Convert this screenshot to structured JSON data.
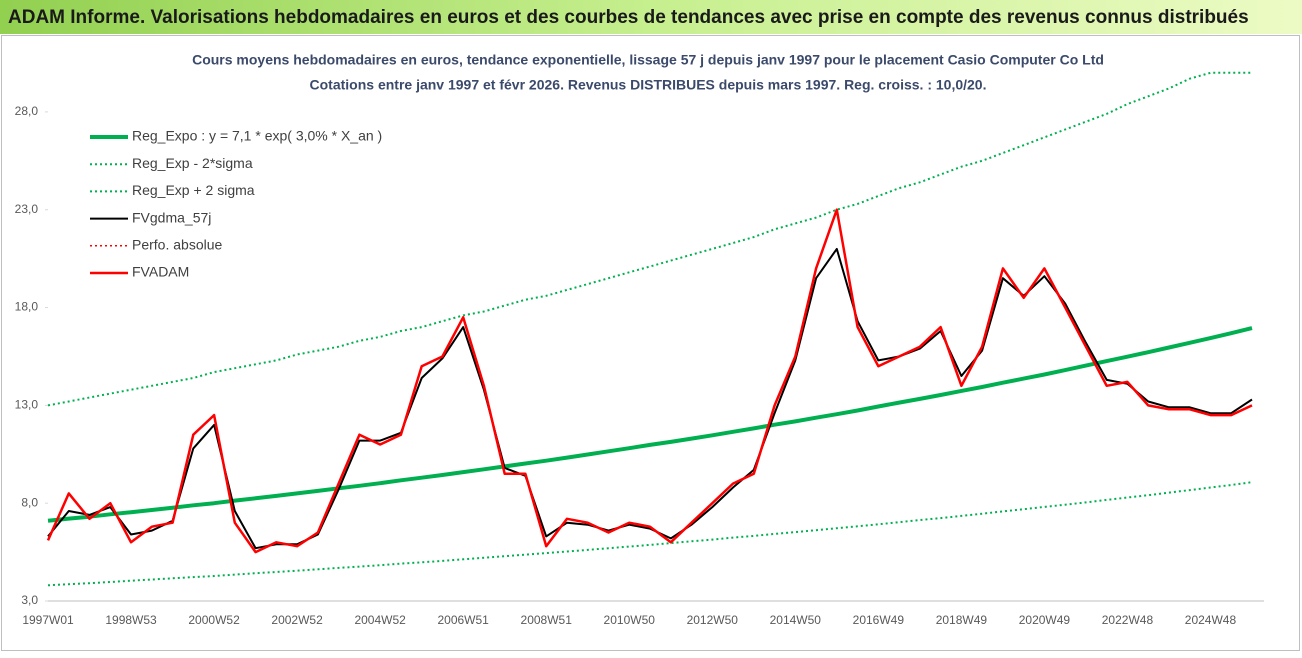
{
  "chart_data": {
    "type": "line",
    "title": "ADAM Informe. Valorisations hebdomadaires en euros et des courbes de tendances avec prise en compte des revenus connus distribués",
    "subtitle": [
      "Cours moyens hebdomadaires en euros, tendance exponentielle, lissage 57 j depuis janv 1997 pour le placement Casio Computer Co Ltd",
      "Cotations entre janv 1997 et févr 2026. Revenus DISTRIBUES depuis mars 1997. Reg. croiss. : 10,0/20."
    ],
    "categories": [
      "1997W01",
      null,
      null,
      null,
      "1998W53",
      null,
      null,
      null,
      "2000W52",
      null,
      null,
      null,
      "2002W52",
      null,
      null,
      null,
      "2004W52",
      null,
      null,
      null,
      "2006W51",
      null,
      null,
      null,
      "2008W51",
      null,
      null,
      null,
      "2010W50",
      null,
      null,
      null,
      "2012W50",
      null,
      null,
      null,
      "2014W50",
      null,
      null,
      null,
      "2016W49",
      null,
      null,
      null,
      "2018W49",
      null,
      null,
      null,
      "2020W49",
      null,
      null,
      null,
      "2022W48",
      null,
      null,
      null,
      "2024W48",
      null,
      null
    ],
    "ylim": [
      3,
      30.5
    ],
    "yticks": [
      {
        "value": 3,
        "label": "3,0"
      },
      {
        "value": 8,
        "label": "8,0"
      },
      {
        "value": 13,
        "label": "13,0"
      },
      {
        "value": 18,
        "label": "18,0"
      },
      {
        "value": 23,
        "label": "23,0"
      },
      {
        "value": 28,
        "label": "28,0"
      }
    ],
    "grid": false,
    "legend": "top-left",
    "series": [
      {
        "name": "Reg_Expo : y = 7,1 * exp( 3,0% *  X_an )",
        "color": "#00b050",
        "style": "solid",
        "width": 4,
        "values": [
          7.1,
          7.21,
          7.31,
          7.43,
          7.54,
          7.65,
          7.77,
          7.89,
          8.0,
          8.13,
          8.25,
          8.37,
          8.5,
          8.63,
          8.76,
          8.89,
          9.02,
          9.17,
          9.3,
          9.44,
          9.59,
          9.73,
          9.88,
          10.03,
          10.17,
          10.33,
          10.49,
          10.65,
          10.81,
          10.98,
          11.13,
          11.3,
          11.47,
          11.65,
          11.82,
          12.01,
          12.18,
          12.37,
          12.55,
          12.74,
          12.94,
          13.14,
          13.33,
          13.53,
          13.74,
          13.94,
          14.16,
          14.37,
          14.58,
          14.8,
          15.03,
          15.26,
          15.49,
          15.72,
          15.96,
          16.2,
          16.44,
          16.69,
          16.95
        ]
      },
      {
        "name": "Reg_Exp - 2*sigma",
        "color": "#00b050",
        "style": "dotted",
        "width": 2,
        "values": [
          3.8,
          3.86,
          3.91,
          3.97,
          4.04,
          4.1,
          4.16,
          4.22,
          4.28,
          4.35,
          4.42,
          4.48,
          4.55,
          4.62,
          4.69,
          4.76,
          4.83,
          4.91,
          4.98,
          5.05,
          5.13,
          5.21,
          5.29,
          5.37,
          5.45,
          5.53,
          5.61,
          5.7,
          5.78,
          5.87,
          5.96,
          6.05,
          6.14,
          6.24,
          6.33,
          6.43,
          6.52,
          6.62,
          6.72,
          6.82,
          6.92,
          7.03,
          7.14,
          7.24,
          7.35,
          7.46,
          7.58,
          7.69,
          7.81,
          7.92,
          8.04,
          8.17,
          8.29,
          8.41,
          8.54,
          8.67,
          8.8,
          8.93,
          9.07
        ]
      },
      {
        "name": "Reg_Exp + 2 sigma",
        "color": "#00b050",
        "style": "dotted",
        "width": 2,
        "values": [
          13.0,
          13.2,
          13.4,
          13.6,
          13.8,
          14.0,
          14.2,
          14.4,
          14.7,
          14.9,
          15.1,
          15.3,
          15.6,
          15.8,
          16.0,
          16.3,
          16.5,
          16.8,
          17.0,
          17.3,
          17.6,
          17.8,
          18.1,
          18.4,
          18.6,
          18.9,
          19.2,
          19.5,
          19.8,
          20.1,
          20.4,
          20.7,
          21.0,
          21.3,
          21.6,
          22.0,
          22.3,
          22.6,
          23.0,
          23.3,
          23.7,
          24.1,
          24.4,
          24.8,
          25.2,
          25.5,
          25.9,
          26.3,
          26.7,
          27.1,
          27.5,
          27.9,
          28.4,
          28.8,
          29.2,
          29.7,
          30.0,
          30.0,
          30.0
        ]
      },
      {
        "name": "FVgdma_57j",
        "color": "#000000",
        "style": "solid",
        "width": 2,
        "values": [
          6.3,
          7.6,
          7.4,
          7.8,
          6.4,
          6.6,
          7.1,
          10.8,
          12.0,
          7.6,
          5.7,
          5.9,
          5.9,
          6.4,
          8.7,
          11.2,
          11.2,
          11.6,
          14.4,
          15.4,
          17.0,
          13.8,
          9.8,
          9.4,
          6.3,
          7.0,
          6.9,
          6.6,
          6.9,
          6.7,
          6.2,
          6.9,
          7.8,
          8.8,
          9.7,
          12.6,
          15.3,
          19.5,
          21.0,
          17.3,
          15.3,
          15.5,
          15.9,
          16.8,
          14.5,
          15.8,
          19.5,
          18.6,
          19.6,
          18.2,
          16.2,
          14.3,
          14.1,
          13.2,
          12.9,
          12.9,
          12.6,
          12.6,
          13.3
        ]
      },
      {
        "name": "Perfo. absolue",
        "color": "#ff0000",
        "style": "dotted",
        "width": 1.5,
        "values": [
          null,
          null,
          null,
          null,
          null,
          null,
          null,
          null,
          null,
          null,
          null,
          null,
          null,
          null,
          null,
          null,
          null,
          null,
          null,
          null,
          null,
          null,
          null,
          null,
          null,
          null,
          null,
          null,
          null,
          null,
          null,
          null,
          null,
          null,
          null,
          null,
          null,
          null,
          null,
          null,
          null,
          null,
          null,
          null,
          null,
          null,
          null,
          null,
          null,
          null,
          null,
          null,
          null,
          null,
          null,
          null,
          null,
          null,
          null
        ]
      },
      {
        "name": "FVADAM",
        "color": "#ff0000",
        "style": "solid",
        "width": 2.5,
        "values": [
          6.1,
          8.5,
          7.2,
          8.0,
          6.0,
          6.8,
          7.0,
          11.5,
          12.5,
          7.0,
          5.5,
          6.0,
          5.8,
          6.5,
          9.0,
          11.5,
          11.0,
          11.5,
          15.0,
          15.5,
          17.5,
          14.0,
          9.5,
          9.5,
          5.8,
          7.2,
          7.0,
          6.5,
          7.0,
          6.8,
          6.0,
          7.0,
          8.0,
          9.0,
          9.5,
          13.0,
          15.5,
          20.0,
          23.0,
          17.0,
          15.0,
          15.5,
          16.0,
          17.0,
          14.0,
          16.0,
          20.0,
          18.5,
          20.0,
          18.0,
          16.0,
          14.0,
          14.2,
          13.0,
          12.8,
          12.8,
          12.5,
          12.5,
          13.0
        ]
      }
    ]
  }
}
